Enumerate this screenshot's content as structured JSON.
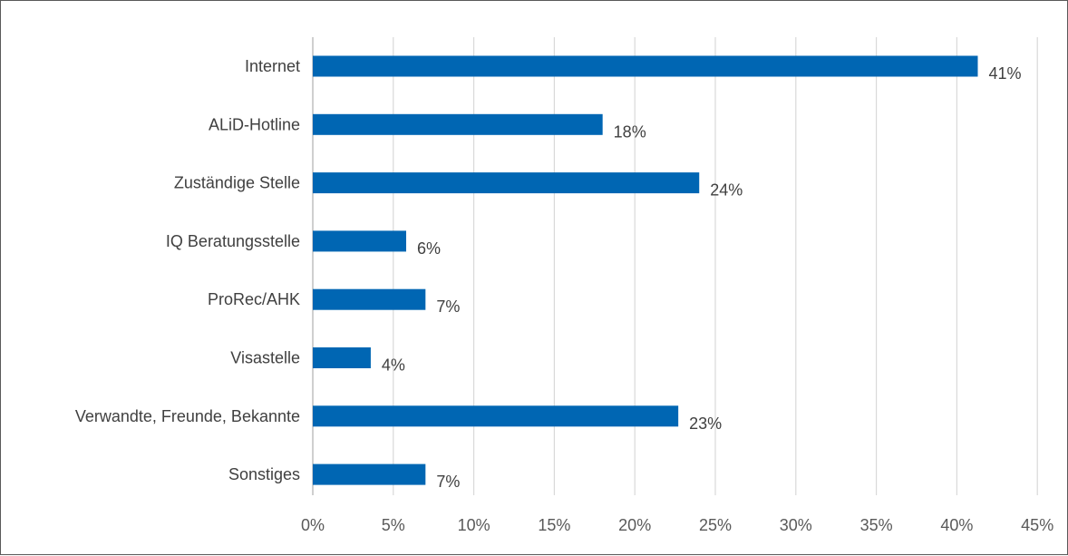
{
  "chart_data": {
    "type": "bar",
    "orientation": "horizontal",
    "categories": [
      "Internet",
      "ALiD-Hotline",
      "Zuständige Stelle",
      "IQ Beratungsstelle",
      "ProRec/AHK",
      "Visastelle",
      "Verwandte, Freunde, Bekannte",
      "Sonstiges"
    ],
    "values": [
      41.3,
      18,
      24,
      5.8,
      7,
      3.6,
      22.7,
      7
    ],
    "value_labels": [
      "41%",
      "18%",
      "24%",
      "6%",
      "7%",
      "4%",
      "23%",
      "7%"
    ],
    "x_ticks": [
      "0%",
      "5%",
      "10%",
      "15%",
      "20%",
      "25%",
      "30%",
      "35%",
      "40%",
      "45%"
    ],
    "xlim": [
      0,
      45
    ],
    "grid": true,
    "bar_color": "#0066b3",
    "title": "",
    "xlabel": "",
    "ylabel": ""
  }
}
